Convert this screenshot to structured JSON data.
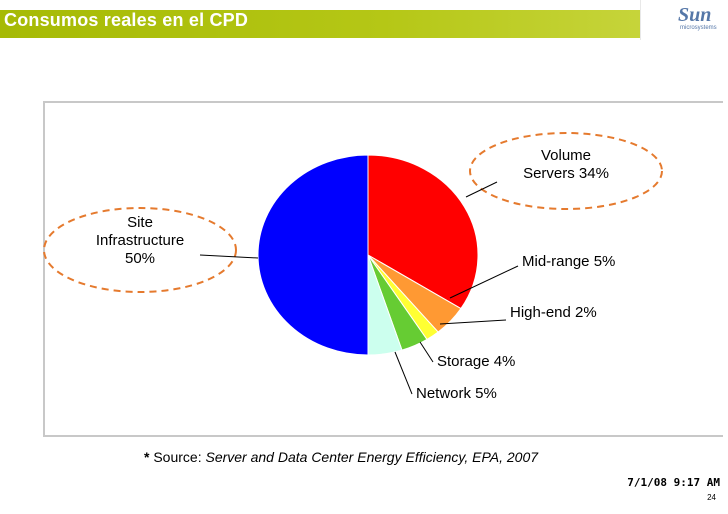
{
  "header": {
    "title": "Consumos reales en el CPD",
    "logo_text": "Sun",
    "logo_subtext": "microsystems"
  },
  "chart_data": {
    "type": "pie",
    "slices": [
      {
        "label_lines": [
          "Volume",
          "Servers 34%"
        ],
        "value": 34,
        "color": "#ff0000"
      },
      {
        "label_lines": [
          "Mid-range 5%"
        ],
        "value": 5,
        "color": "#ff9933"
      },
      {
        "label_lines": [
          "High-end 2%"
        ],
        "value": 2,
        "color": "#ffff33"
      },
      {
        "label_lines": [
          "Storage 4%"
        ],
        "value": 4,
        "color": "#66cc33"
      },
      {
        "label_lines": [
          "Network 5%"
        ],
        "value": 5,
        "color": "#ccffee"
      },
      {
        "label_lines": [
          "Site",
          "Infrastructure",
          "50%"
        ],
        "value": 50,
        "color": "#0000ff"
      }
    ],
    "highlight_color": "#e57a2e"
  },
  "source": {
    "prefix_star": "*",
    "prefix": " Source: ",
    "citation": "Server and Data Center Energy Efficiency, EPA, 2007"
  },
  "footer": {
    "date": "7/1/08 9:17 AM",
    "page": "24"
  }
}
